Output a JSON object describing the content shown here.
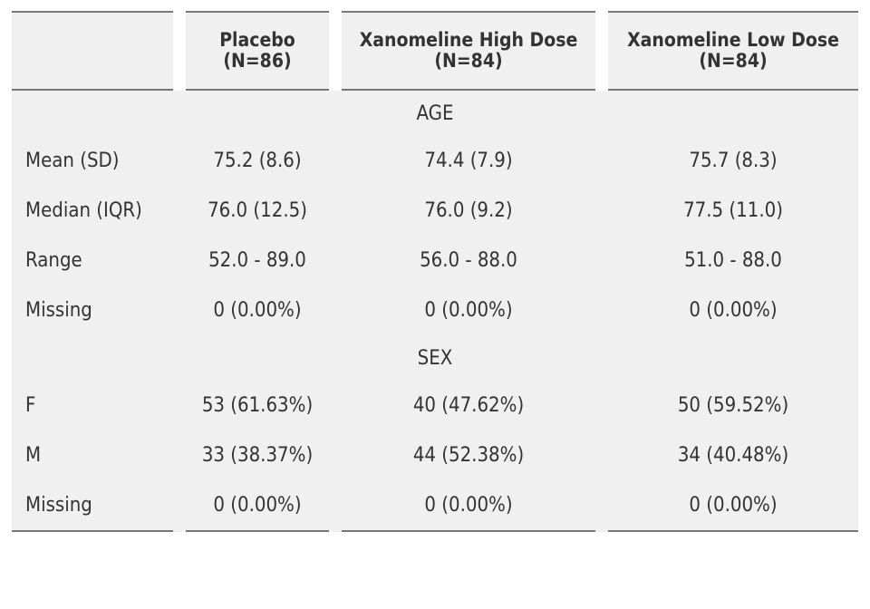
{
  "columns": [
    {
      "name": "Placebo",
      "n": "(N=86)"
    },
    {
      "name": "Xanomeline High Dose",
      "n": "(N=84)"
    },
    {
      "name": "Xanomeline Low Dose",
      "n": "(N=84)"
    }
  ],
  "sections": [
    {
      "title": "AGE",
      "rows": [
        {
          "label": "Mean (SD)",
          "values": [
            "75.2 (8.6)",
            "74.4 (7.9)",
            "75.7 (8.3)"
          ]
        },
        {
          "label": "Median (IQR)",
          "values": [
            "76.0 (12.5)",
            "76.0 (9.2)",
            "77.5 (11.0)"
          ]
        },
        {
          "label": "Range",
          "values": [
            "52.0 - 89.0",
            "56.0 - 88.0",
            "51.0 - 88.0"
          ]
        },
        {
          "label": "Missing",
          "values": [
            "0 (0.00%)",
            "0 (0.00%)",
            "0 (0.00%)"
          ]
        }
      ]
    },
    {
      "title": "SEX",
      "rows": [
        {
          "label": "F",
          "values": [
            "53 (61.63%)",
            "40 (47.62%)",
            "50 (59.52%)"
          ]
        },
        {
          "label": "M",
          "values": [
            "33 (38.37%)",
            "44 (52.38%)",
            "34 (40.48%)"
          ]
        },
        {
          "label": "Missing",
          "values": [
            "0 (0.00%)",
            "0 (0.00%)",
            "0 (0.00%)"
          ]
        }
      ]
    }
  ],
  "colors": {
    "background": "#f0f0f0",
    "text": "#333333",
    "rule": "#777777"
  }
}
